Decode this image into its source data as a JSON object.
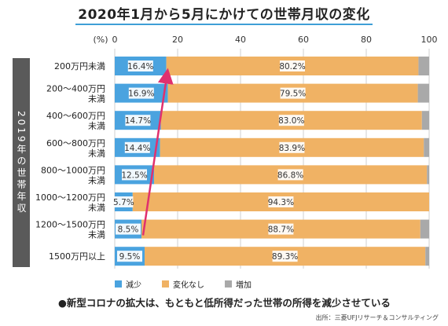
{
  "title": "2020年1月から5月にかけての世帯月収の変化",
  "side_label": "2019年の世帯年収",
  "axis_unit": "(%)",
  "note": "●新型コロナの拡大は、もともと低所得だった世帯の所得を減少させている",
  "source": "出所：三菱UFJリサーチ＆コンサルティング",
  "colors": {
    "decrease": "#4aa3df",
    "unchanged": "#f0b264",
    "increase": "#a9a9a9",
    "arrow": "#e0306e",
    "grid": "#cfcfcf"
  },
  "chart_data": {
    "type": "bar",
    "orientation": "horizontal-stacked",
    "xlim": [
      0,
      100
    ],
    "xticks": [
      "0",
      "20",
      "40",
      "60",
      "80",
      "100"
    ],
    "categories": [
      [
        "200万円未満"
      ],
      [
        "200〜400万円",
        "未満"
      ],
      [
        "400〜600万円",
        "未満"
      ],
      [
        "600〜800万円",
        "未満"
      ],
      [
        "800〜1000万円",
        "未満"
      ],
      [
        "1000〜1200万円",
        "未満"
      ],
      [
        "1200〜1500万円",
        "未満"
      ],
      [
        "1500万円以上"
      ]
    ],
    "series": [
      {
        "name": "減少",
        "values": [
          16.4,
          16.9,
          14.7,
          14.4,
          12.5,
          5.7,
          8.5,
          9.5
        ],
        "labels": [
          "16.4%",
          "16.9%",
          "14.7%",
          "14.4%",
          "12.5%",
          "5.7%",
          "8.5%",
          "9.5%"
        ]
      },
      {
        "name": "変化なし",
        "values": [
          80.2,
          79.5,
          83.0,
          83.9,
          86.8,
          94.3,
          88.7,
          89.3
        ],
        "labels": [
          "80.2%",
          "79.5%",
          "83.0%",
          "83.9%",
          "86.8%",
          "94.3%",
          "88.7%",
          "89.3%"
        ]
      },
      {
        "name": "増加",
        "values": [
          3.4,
          3.6,
          2.3,
          1.7,
          0.7,
          0.0,
          2.8,
          1.2
        ]
      }
    ],
    "arrow": {
      "from": {
        "category_index": 6,
        "x": 8.5
      },
      "to": {
        "category_index": 0,
        "x": 16.4
      }
    },
    "legend_position": "bottom"
  }
}
